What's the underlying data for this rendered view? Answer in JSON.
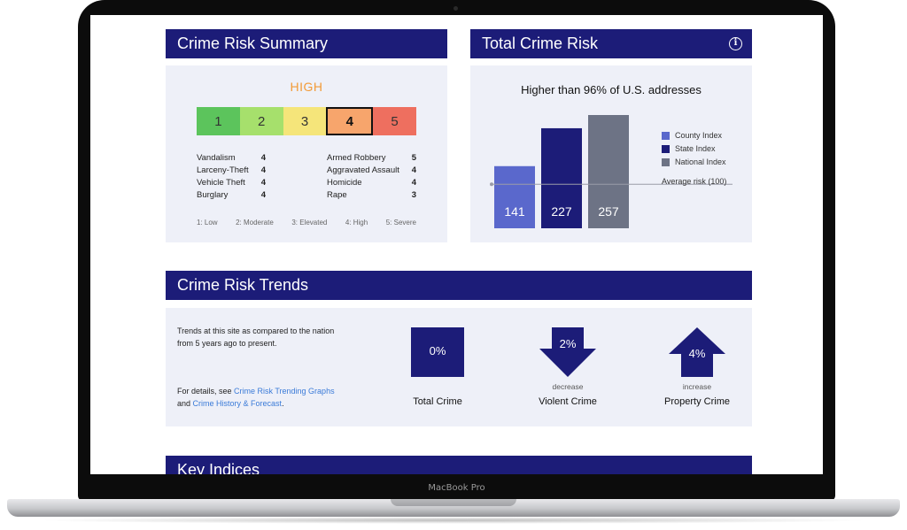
{
  "device": {
    "model": "MacBook Pro"
  },
  "summary": {
    "title": "Crime Risk Summary",
    "risk_level": "HIGH",
    "scale": [
      {
        "label": "1",
        "color": "#5cc45c"
      },
      {
        "label": "2",
        "color": "#a6e06c"
      },
      {
        "label": "3",
        "color": "#f5e57a"
      },
      {
        "label": "4",
        "color": "#f7a56c"
      },
      {
        "label": "5",
        "color": "#ee6f5f"
      }
    ],
    "active_level": 4,
    "crimes_left": [
      {
        "name": "Vandalism",
        "value": "4"
      },
      {
        "name": "Larceny-Theft",
        "value": "4"
      },
      {
        "name": "Vehicle Theft",
        "value": "4"
      },
      {
        "name": "Burglary",
        "value": "4"
      }
    ],
    "crimes_right": [
      {
        "name": "Armed Robbery",
        "value": "5"
      },
      {
        "name": "Aggravated Assault",
        "value": "4"
      },
      {
        "name": "Homicide",
        "value": "4"
      },
      {
        "name": "Rape",
        "value": "3"
      }
    ],
    "legend": [
      "1: Low",
      "2: Moderate",
      "3: Elevated",
      "4: High",
      "5: Severe"
    ]
  },
  "total_risk": {
    "title": "Total Crime Risk",
    "info_icon": "info-icon",
    "headline": "Higher than 96% of U.S. addresses",
    "average_label": "Average risk (100)"
  },
  "chart_data": {
    "type": "bar",
    "categories": [
      "County Index",
      "State Index",
      "National Index"
    ],
    "values": [
      141,
      227,
      257
    ],
    "colors": [
      "#5a68cc",
      "#1c1c78",
      "#6d7385"
    ],
    "reference_line": 100,
    "ylim": [
      0,
      257
    ],
    "legend_position": "right"
  },
  "trends": {
    "title": "Crime Risk Trends",
    "intro": "Trends at this site as compared to the nation from 5 years ago to present.",
    "details_prefix": "For details, see ",
    "link_graphs": "Crime Risk Trending Graphs",
    "details_mid": "and ",
    "link_history": "Crime History & Forecast",
    "details_suffix": ".",
    "items": [
      {
        "name": "Total Crime",
        "value": "0%",
        "direction": "",
        "shape": "square"
      },
      {
        "name": "Violent Crime",
        "value": "2%",
        "direction": "decrease",
        "shape": "arrow-down"
      },
      {
        "name": "Property Crime",
        "value": "4%",
        "direction": "increase",
        "shape": "arrow-up"
      }
    ]
  },
  "key_indices": {
    "title": "Key Indices"
  }
}
